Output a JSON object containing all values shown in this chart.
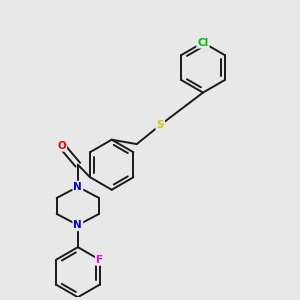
{
  "background_color": "#e8e8e8",
  "bond_color": "#1a1a1a",
  "atom_colors": {
    "N": "#0000ee",
    "O": "#ee0000",
    "S": "#cccc00",
    "F": "#ee00ee",
    "Cl": "#00bb00",
    "C": "#1a1a1a"
  },
  "bond_lw": 1.4,
  "font_size": 7.5
}
